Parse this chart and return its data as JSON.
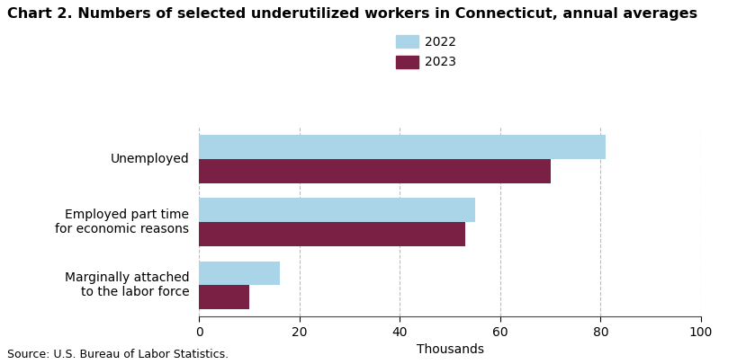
{
  "title": "Chart 2. Numbers of selected underutilized workers in Connecticut, annual averages",
  "categories": [
    "Unemployed",
    "Employed part time\nfor economic reasons",
    "Marginally attached\nto the labor force"
  ],
  "values_2022": [
    81,
    55,
    16
  ],
  "values_2023": [
    70,
    53,
    10
  ],
  "color_2022": "#aad4e8",
  "color_2023": "#7b2045",
  "xlim": [
    0,
    100
  ],
  "xticks": [
    0,
    20,
    40,
    60,
    80,
    100
  ],
  "xlabel": "Thousands",
  "legend_labels": [
    "2022",
    "2023"
  ],
  "source_text": "Source: U.S. Bureau of Labor Statistics.",
  "background_color": "#ffffff",
  "bar_height": 0.38,
  "grid_color": "#bbbbbb",
  "title_fontsize": 11.5,
  "label_fontsize": 10,
  "tick_fontsize": 10,
  "source_fontsize": 9
}
